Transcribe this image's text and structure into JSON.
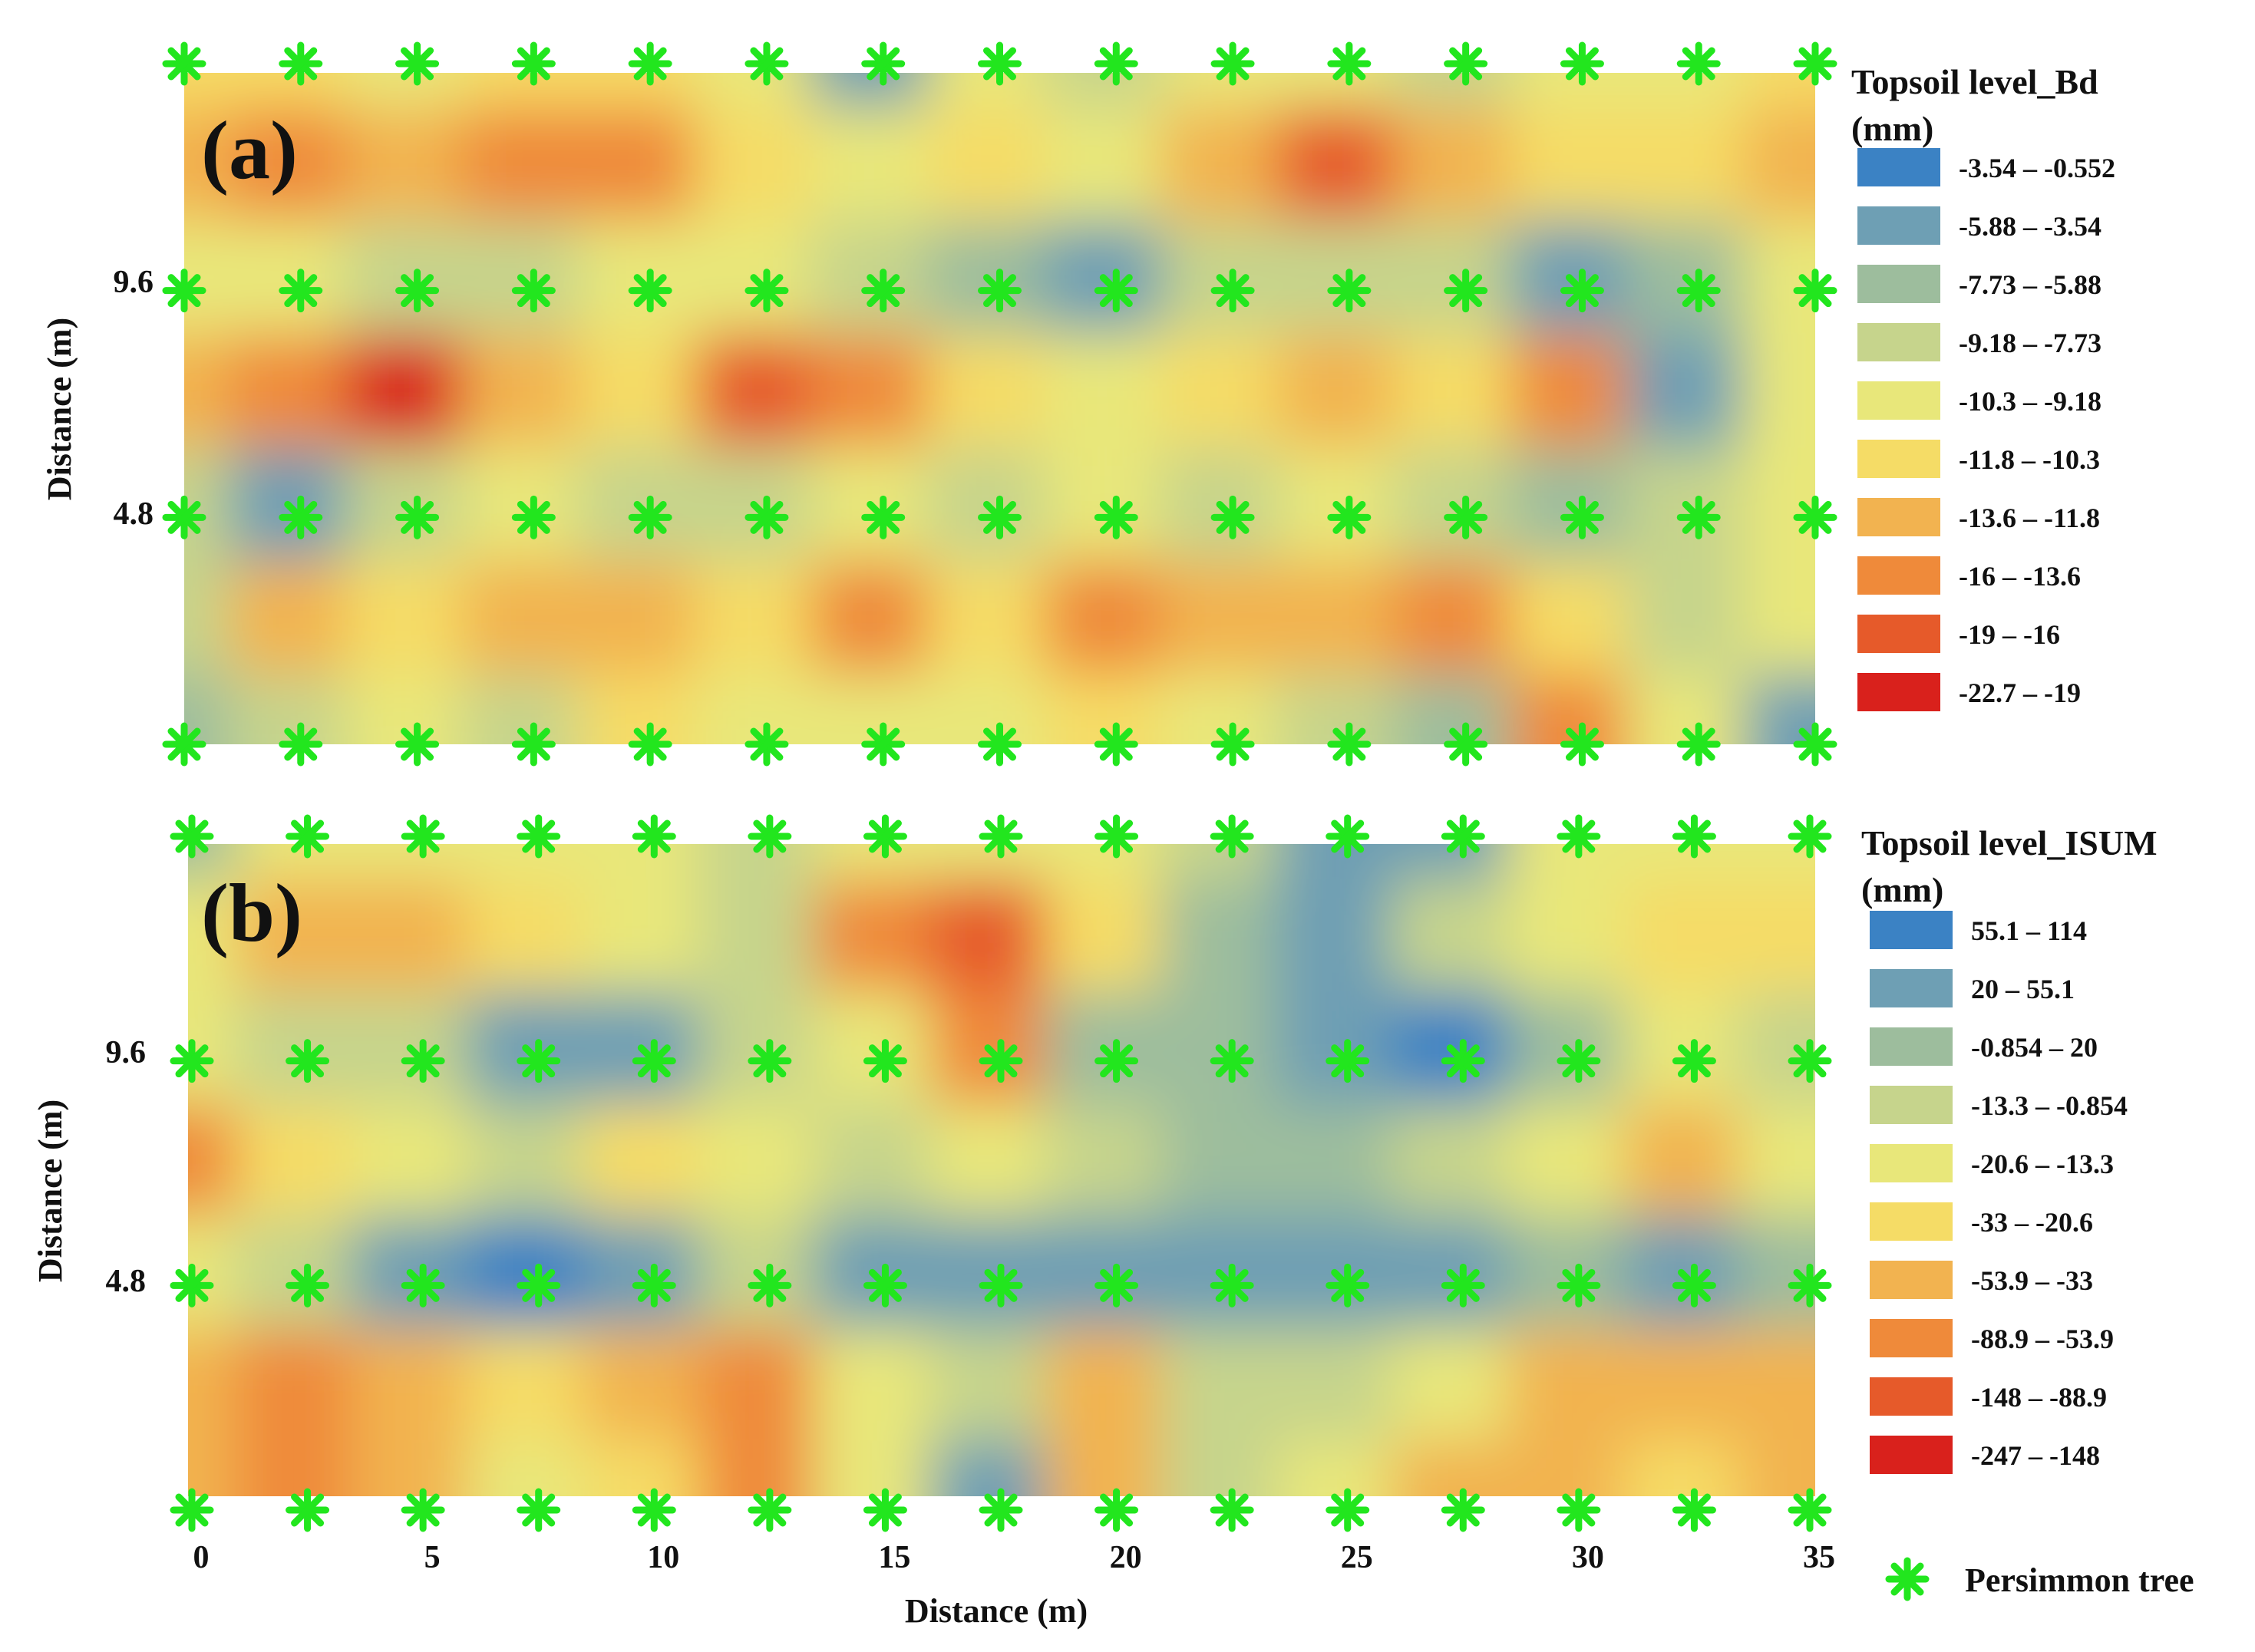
{
  "panels": [
    {
      "id": "a",
      "panel_label": "(a)",
      "ylabel": "Distance (m)",
      "y_ticks": [
        "9.6",
        "4.8"
      ],
      "legend_title_line1": "Topsoil level_Bd",
      "legend_title_line2": "(mm)",
      "legend": [
        {
          "label": "-3.54 – -0.552",
          "color": "#3b82c4"
        },
        {
          "label": "-5.88 – -3.54",
          "color": "#6e9fb4"
        },
        {
          "label": "-7.73 – -5.88",
          "color": "#9dbd9d"
        },
        {
          "label": "-9.18 – -7.73",
          "color": "#c6d48c"
        },
        {
          "label": "-10.3 – -9.18",
          "color": "#e8e77a"
        },
        {
          "label": "-11.8 – -10.3",
          "color": "#f5dc66"
        },
        {
          "label": "-13.6 – -11.8",
          "color": "#f2b350"
        },
        {
          "label": "-16 – -13.6",
          "color": "#ef8a3a"
        },
        {
          "label": "-19 – -16",
          "color": "#e65a2a"
        },
        {
          "label": "-22.7 – -19",
          "color": "#d9211c"
        }
      ]
    },
    {
      "id": "b",
      "panel_label": "(b)",
      "ylabel": "Distance (m)",
      "y_ticks": [
        "9.6",
        "4.8"
      ],
      "legend_title_line1": "Topsoil level_ISUM",
      "legend_title_line2": "(mm)",
      "legend": [
        {
          "label": "55.1 – 114",
          "color": "#3b82c4"
        },
        {
          "label": "20 – 55.1",
          "color": "#6e9fb4"
        },
        {
          "label": "-0.854 – 20",
          "color": "#9dbd9d"
        },
        {
          "label": "-13.3 – -0.854",
          "color": "#c6d48c"
        },
        {
          "label": "-20.6 – -13.3",
          "color": "#e8e77a"
        },
        {
          "label": "-33 – -20.6",
          "color": "#f5dc66"
        },
        {
          "label": "-53.9 – -33",
          "color": "#f2b350"
        },
        {
          "label": "-88.9 – -53.9",
          "color": "#ef8a3a"
        },
        {
          "label": "-148 – -88.9",
          "color": "#e65a2a"
        },
        {
          "label": "-247 – -148",
          "color": "#d9211c"
        }
      ]
    }
  ],
  "xlabel": "Distance (m)",
  "x_ticks": [
    "0",
    "5",
    "10",
    "15",
    "20",
    "25",
    "30",
    "35"
  ],
  "tree_legend_label": "Persimmon tree",
  "tree_color": "#22e61e",
  "chart_data": [
    {
      "type": "heatmap",
      "title": "Topsoil level_Bd (mm)",
      "xlabel": "",
      "ylabel": "Distance (m)",
      "xlim": [
        0,
        35
      ],
      "y_ticks": [
        4.8,
        9.6
      ],
      "grid": false,
      "legend_placement": "right",
      "classes": [
        "-3.54 – -0.552",
        "-5.88 – -3.54",
        "-7.73 – -5.88",
        "-9.18 – -7.73",
        "-10.3 – -9.18",
        "-11.8 – -10.3",
        "-13.6 – -11.8",
        "-16 – -13.6",
        "-19 – -16",
        "-22.7 – -19"
      ],
      "tree_x": [
        0,
        2.5,
        5,
        7.5,
        10,
        12.5,
        15,
        17.5,
        20,
        22.5,
        25,
        27.5,
        30,
        32.5,
        35
      ],
      "tree_rows_y": [
        14.4,
        9.6,
        4.8,
        0
      ],
      "grid_x": [
        0,
        2.5,
        5,
        7.5,
        10,
        12.5,
        15,
        17.5,
        20,
        22.5,
        25,
        27.5,
        30,
        32.5,
        35
      ],
      "grid_y_top_to_bottom": [
        14.4,
        12.0,
        9.6,
        7.2,
        4.8,
        2.4,
        0
      ],
      "class_index_grid": [
        [
          5,
          5,
          4,
          5,
          5,
          4,
          1,
          4,
          3,
          4,
          4,
          3,
          4,
          4,
          5
        ],
        [
          6,
          7,
          6,
          7,
          7,
          5,
          4,
          5,
          4,
          6,
          8,
          6,
          5,
          5,
          6
        ],
        [
          4,
          4,
          3,
          3,
          4,
          4,
          3,
          2,
          1,
          3,
          3,
          3,
          1,
          2,
          4
        ],
        [
          6,
          7,
          9,
          6,
          5,
          8,
          7,
          5,
          4,
          5,
          6,
          5,
          7,
          1,
          4
        ],
        [
          3,
          1,
          3,
          4,
          3,
          3,
          4,
          3,
          4,
          3,
          4,
          3,
          2,
          3,
          4
        ],
        [
          3,
          6,
          5,
          6,
          6,
          5,
          7,
          5,
          7,
          6,
          6,
          7,
          5,
          3,
          4
        ],
        [
          2,
          3,
          4,
          3,
          5,
          4,
          4,
          4,
          5,
          4,
          3,
          2,
          7,
          4,
          1
        ]
      ]
    },
    {
      "type": "heatmap",
      "title": "Topsoil level_ISUM (mm)",
      "xlabel": "Distance (m)",
      "ylabel": "Distance (m)",
      "xlim": [
        0,
        35
      ],
      "y_ticks": [
        4.8,
        9.6
      ],
      "grid": false,
      "legend_placement": "right",
      "classes": [
        "55.1 – 114",
        "20 – 55.1",
        "-0.854 – 20",
        "-13.3 – -0.854",
        "-20.6 – -13.3",
        "-33 – -20.6",
        "-53.9 – -33",
        "-88.9 – -53.9",
        "-148 – -88.9",
        "-247 – -148"
      ],
      "tree_x": [
        0,
        2.5,
        5,
        7.5,
        10,
        12.5,
        15,
        17.5,
        20,
        22.5,
        25,
        27.5,
        30,
        32.5,
        35
      ],
      "tree_rows_y": [
        14.4,
        9.6,
        4.8,
        0
      ],
      "grid_x": [
        0,
        2.5,
        5,
        7.5,
        10,
        12.5,
        15,
        17.5,
        20,
        22.5,
        25,
        27.5,
        30,
        32.5,
        35
      ],
      "grid_y_top_to_bottom": [
        14.4,
        12.0,
        9.6,
        7.2,
        4.8,
        2.4,
        0
      ],
      "class_index_grid": [
        [
          2,
          4,
          4,
          4,
          4,
          3,
          4,
          4,
          4,
          3,
          1,
          1,
          4,
          4,
          4
        ],
        [
          4,
          6,
          6,
          5,
          4,
          3,
          7,
          8,
          5,
          2,
          1,
          3,
          4,
          5,
          5
        ],
        [
          4,
          3,
          3,
          1,
          1,
          3,
          4,
          7,
          2,
          2,
          1,
          0,
          2,
          4,
          3
        ],
        [
          7,
          5,
          4,
          3,
          5,
          4,
          3,
          4,
          3,
          2,
          2,
          3,
          4,
          6,
          4
        ],
        [
          4,
          3,
          1,
          0,
          1,
          3,
          1,
          1,
          1,
          1,
          1,
          1,
          2,
          1,
          2
        ],
        [
          6,
          7,
          6,
          5,
          6,
          7,
          4,
          3,
          6,
          3,
          3,
          4,
          6,
          6,
          6
        ],
        [
          6,
          7,
          6,
          4,
          5,
          7,
          4,
          1,
          6,
          3,
          4,
          6,
          6,
          5,
          6
        ]
      ]
    }
  ]
}
